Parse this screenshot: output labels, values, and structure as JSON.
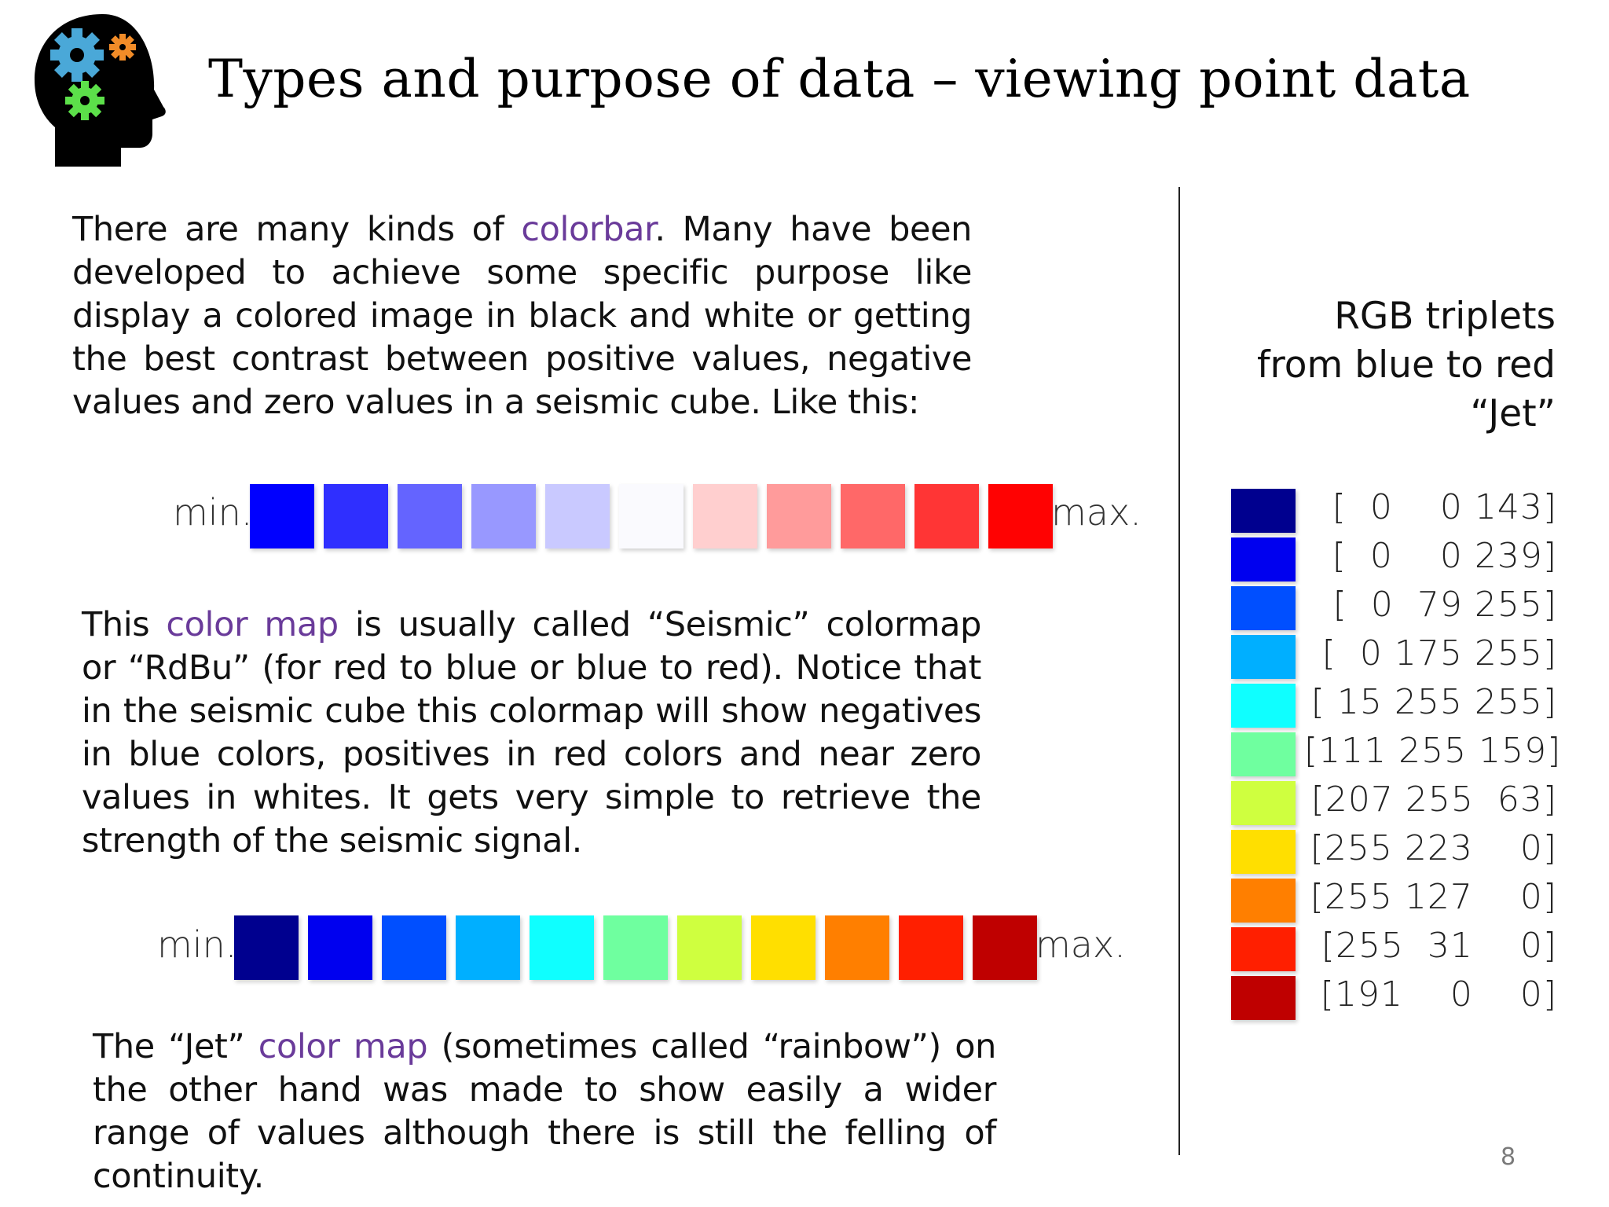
{
  "title": "Types and purpose of data – viewing point data",
  "para1": {
    "before": "There are many kinds of ",
    "link": "colorbar",
    "after": ". Many have been developed to achieve some specific purpose like display a colored image in black and white or getting the best contrast between positive values, negative values and zero values in a seismic cube. Like this:"
  },
  "seismic_bar": {
    "min_label": "min.",
    "max_label": "max.",
    "colors": [
      "#0000ff",
      "#2f2fff",
      "#6464ff",
      "#9898ff",
      "#c9c9ff",
      "#fafafe",
      "#ffcfcf",
      "#ff9b9b",
      "#ff6868",
      "#ff3535",
      "#ff0202"
    ]
  },
  "para2": {
    "before": "This ",
    "link": "color map",
    "after": " is usually called “Seismic” colormap or “RdBu” (for red to blue or blue to red). Notice that in the seismic cube this colormap will show negatives in blue colors, positives in red colors and near zero values in whites. It gets very simple to retrieve the strength of the seismic signal."
  },
  "jet_bar": {
    "min_label": "min.",
    "max_label": "max.",
    "colors": [
      "#00008f",
      "#0000ef",
      "#004fff",
      "#00afff",
      "#0fffff",
      "#6fff9f",
      "#cfff3f",
      "#ffdf00",
      "#ff7f00",
      "#ff1f00",
      "#bf0000"
    ]
  },
  "para3": {
    "before": "The “Jet” ",
    "link": "color map",
    "after": " (sometimes called “rainbow”) on the other hand was made to show easily a wider range of values although there is still the felling of continuity."
  },
  "rgb_panel": {
    "title_lines": [
      "RGB triplets",
      "from blue to red",
      "“Jet”"
    ],
    "rows": [
      {
        "color": "#00008f",
        "label": "[  0    0 143]"
      },
      {
        "color": "#0000ef",
        "label": "[  0    0 239]"
      },
      {
        "color": "#004fff",
        "label": "[  0  79 255]"
      },
      {
        "color": "#00afff",
        "label": "[  0 175 255]"
      },
      {
        "color": "#0fffff",
        "label": "[ 15 255 255]"
      },
      {
        "color": "#6fff9f",
        "label": "[111 255 159]"
      },
      {
        "color": "#cfff3f",
        "label": "[207 255  63]"
      },
      {
        "color": "#ffdf00",
        "label": "[255 223    0]"
      },
      {
        "color": "#ff7f00",
        "label": "[255 127    0]"
      },
      {
        "color": "#ff1f00",
        "label": "[255  31    0]"
      },
      {
        "color": "#bf0000",
        "label": "[191    0    0]"
      }
    ]
  },
  "page_number": "8"
}
